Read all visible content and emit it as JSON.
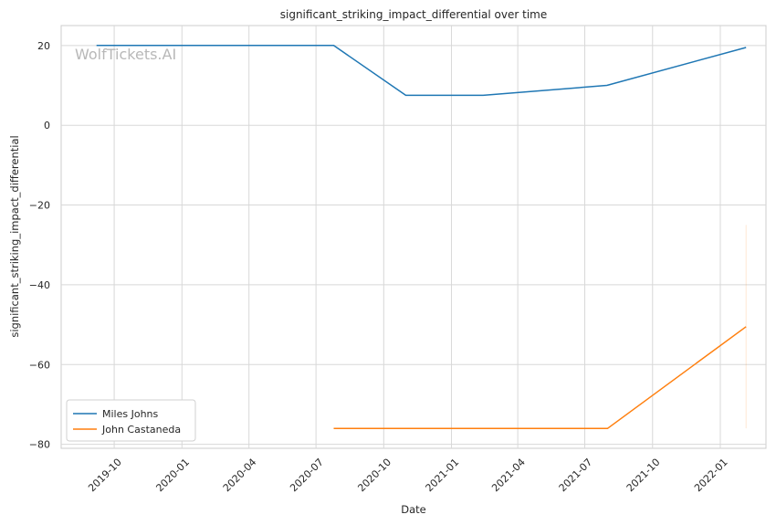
{
  "chart_data": {
    "type": "line",
    "title": "significant_striking_impact_differential over time",
    "xlabel": "Date",
    "ylabel": "significant_striking_impact_differential",
    "watermark": "WolfTickets.AI",
    "x_ticks": [
      "2019-10",
      "2020-01",
      "2020-04",
      "2020-07",
      "2020-10",
      "2021-01",
      "2021-04",
      "2021-07",
      "2021-10",
      "2022-01"
    ],
    "y_ticks": [
      20,
      0,
      -20,
      -40,
      -60,
      -80
    ],
    "xlim": [
      "2019-07-21",
      "2022-03-04"
    ],
    "ylim": [
      -81,
      25
    ],
    "grid": true,
    "legend_position": "lower-left",
    "series": [
      {
        "name": "Miles Johns",
        "color": "#1f77b4",
        "points": [
          {
            "x": "2019-09-07",
            "y": 20
          },
          {
            "x": "2020-07-25",
            "y": 20
          },
          {
            "x": "2020-10-31",
            "y": 7.5
          },
          {
            "x": "2021-02-13",
            "y": 7.5
          },
          {
            "x": "2021-07-31",
            "y": 10
          },
          {
            "x": "2022-02-05",
            "y": 19.5
          }
        ]
      },
      {
        "name": "John Castaneda",
        "color": "#ff7f0e",
        "points": [
          {
            "x": "2020-07-25",
            "y": -76
          },
          {
            "x": "2021-08-01",
            "y": -76
          },
          {
            "x": "2022-02-05",
            "y": -50.5
          }
        ],
        "error_band": {
          "x": "2022-02-05",
          "low": -76,
          "high": -25
        }
      }
    ]
  }
}
